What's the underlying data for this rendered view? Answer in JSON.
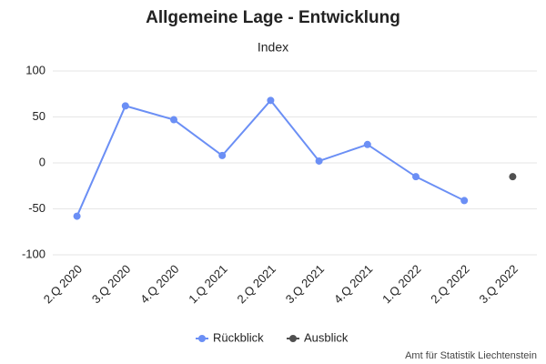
{
  "chart_data": {
    "type": "line",
    "title": "Allgemeine Lage - Entwicklung",
    "subtitle": "Index",
    "categories": [
      "2.Q 2020",
      "3.Q 2020",
      "4.Q 2020",
      "1.Q 2021",
      "2.Q 2021",
      "3.Q 2021",
      "4.Q 2021",
      "1.Q 2022",
      "2.Q 2022",
      "3.Q 2022"
    ],
    "series": [
      {
        "name": "Rückblick",
        "color": "#6b8ff5",
        "values": [
          -58,
          62,
          47,
          8,
          68,
          2,
          20,
          -15,
          -41,
          null
        ]
      },
      {
        "name": "Ausblick",
        "color": "#505050",
        "values": [
          null,
          null,
          null,
          null,
          null,
          null,
          null,
          null,
          null,
          -15
        ]
      }
    ],
    "ylim": [
      -100,
      100
    ],
    "yticks": [
      -100,
      -50,
      0,
      50,
      100
    ],
    "grid": true,
    "source": "Amt für Statistik Liechtenstein"
  }
}
